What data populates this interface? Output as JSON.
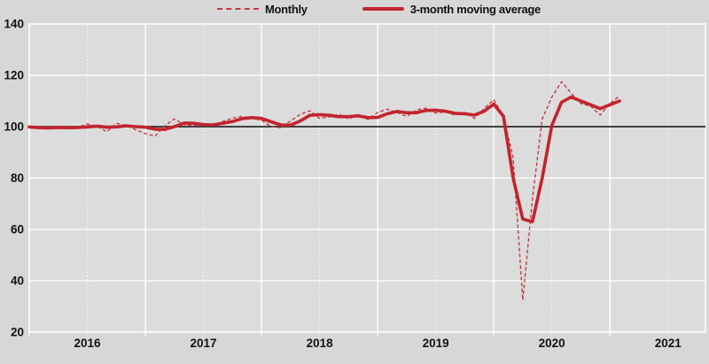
{
  "legend": {
    "items": [
      {
        "label": "Monthly",
        "style": "dashed"
      },
      {
        "label": "3-month moving average",
        "style": "solid"
      }
    ]
  },
  "colors": {
    "page_bg": "#d7d7d7",
    "plot_bg": "#dcdcdc",
    "grid_major": "#ffffff",
    "grid_minor": "#ffffff",
    "baseline": "#2b2b2b",
    "monthly_line": "#c43a44",
    "average_line": "#c2242e"
  },
  "chart_data": {
    "type": "line",
    "title": "",
    "xlabel": "",
    "ylabel": "",
    "index_baseline": 100,
    "x_start": "2016-01",
    "x_end": "2021-02",
    "x_tick_years": [
      "2016",
      "2017",
      "2018",
      "2019",
      "2020",
      "2021"
    ],
    "y_ticks": [
      140,
      120,
      100,
      80,
      60,
      40,
      20
    ],
    "ylim": [
      20,
      140
    ],
    "grid": true,
    "legend_position": "top-center",
    "series": [
      {
        "name": "Monthly",
        "style": "dashed",
        "values": [
          99.8,
          99.2,
          99.6,
          100.2,
          99.0,
          99.8,
          101.0,
          100.2,
          98.0,
          101.3,
          100.5,
          98.8,
          97.3,
          96.3,
          100.3,
          103.0,
          100.8,
          100.3,
          101.2,
          100.6,
          102.0,
          103.3,
          104.0,
          103.3,
          102.5,
          100.0,
          99.6,
          102.2,
          104.8,
          106.2,
          103.2,
          103.8,
          104.8,
          103.0,
          104.8,
          102.8,
          105.5,
          106.8,
          105.5,
          104.0,
          106.5,
          107.2,
          105.3,
          105.8,
          104.5,
          105.5,
          103.2,
          107.0,
          110.5,
          104.0,
          88.0,
          32.5,
          72.0,
          103.0,
          111.5,
          117.5,
          113.0,
          109.0,
          108.0,
          104.5,
          109.0,
          112.0
        ]
      },
      {
        "name": "3-month moving average",
        "style": "solid",
        "values": [
          99.9,
          99.6,
          99.5,
          99.7,
          99.6,
          99.7,
          99.9,
          100.2,
          99.8,
          99.9,
          100.3,
          100.0,
          99.8,
          99.0,
          98.9,
          100.0,
          101.4,
          101.3,
          100.8,
          100.7,
          101.3,
          102.0,
          103.1,
          103.5,
          103.2,
          101.9,
          100.7,
          100.6,
          102.2,
          104.4,
          104.7,
          104.4,
          103.9,
          103.9,
          104.2,
          103.5,
          103.6,
          105.0,
          105.9,
          105.4,
          105.4,
          106.3,
          106.4,
          106.0,
          105.2,
          105.0,
          104.5,
          106.0,
          108.8,
          104.0,
          80.0,
          64.0,
          63.0,
          80.0,
          100.5,
          109.5,
          111.5,
          110.0,
          108.5,
          107.0,
          108.5,
          110.0
        ]
      }
    ]
  }
}
